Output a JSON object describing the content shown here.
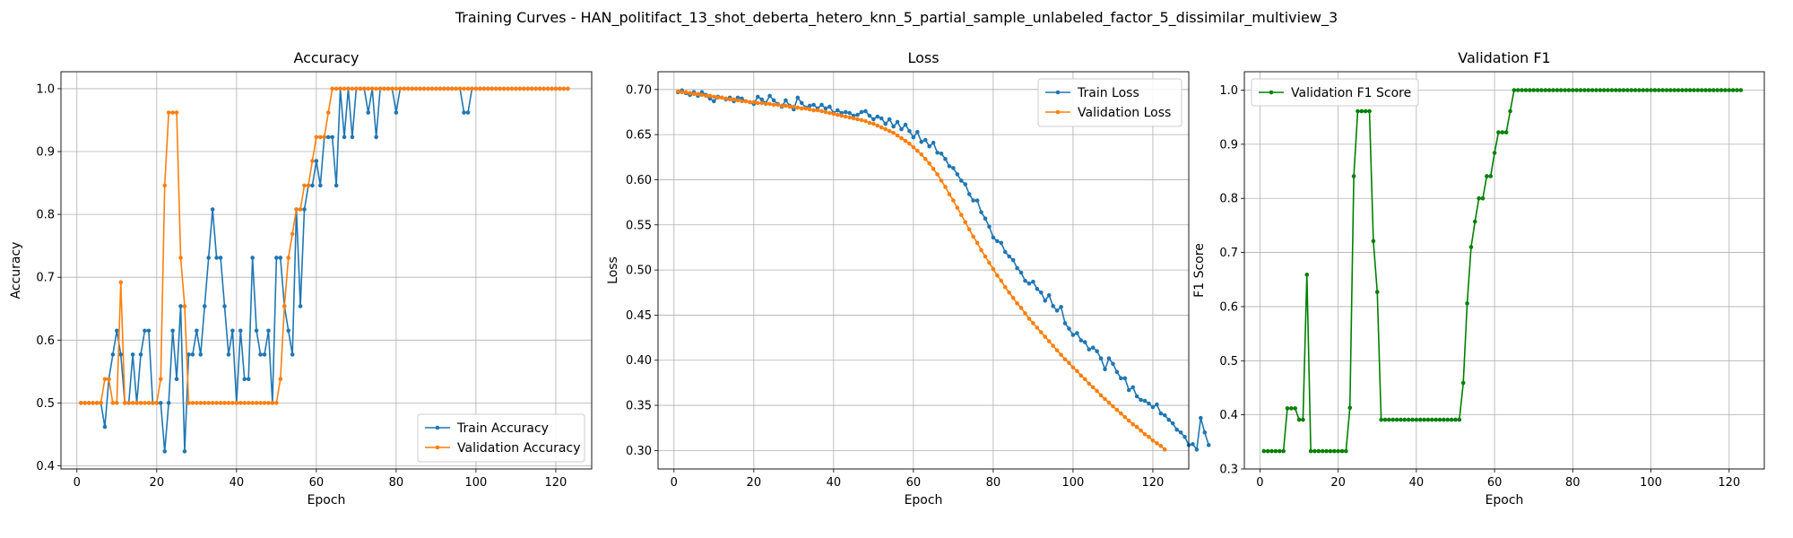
{
  "figure_title": "Training Curves - HAN_politifact_13_shot_deberta_hetero_knn_5_partial_sample_unlabeled_factor_5_dissimilar_multiview_3",
  "colors": {
    "train": "#1f77b4",
    "validation": "#ff7f0e",
    "f1": "#008000",
    "grid": "#b0b0b0"
  },
  "chart_data": [
    {
      "type": "line",
      "title": "Accuracy",
      "xlabel": "Epoch",
      "ylabel": "Accuracy",
      "xlim": [
        -4,
        129
      ],
      "ylim": [
        0.395,
        1.027
      ],
      "xticks": [
        0,
        20,
        40,
        60,
        80,
        100,
        120
      ],
      "yticks": [
        0.4,
        0.5,
        0.6,
        0.7,
        0.8,
        0.9,
        1.0
      ],
      "legend": "bottom-right",
      "grid": true,
      "series": [
        {
          "name": "Train Accuracy",
          "color_key": "train",
          "x_start": 1,
          "values": [
            0.5,
            0.5,
            0.5,
            0.5,
            0.5,
            0.5,
            0.462,
            0.538,
            0.577,
            0.615,
            0.577,
            0.5,
            0.5,
            0.577,
            0.5,
            0.577,
            0.615,
            0.615,
            0.5,
            0.5,
            0.5,
            0.423,
            0.5,
            0.615,
            0.538,
            0.654,
            0.423,
            0.577,
            0.577,
            0.615,
            0.577,
            0.654,
            0.731,
            0.808,
            0.731,
            0.731,
            0.654,
            0.577,
            0.615,
            0.5,
            0.615,
            0.538,
            0.538,
            0.731,
            0.615,
            0.577,
            0.577,
            0.615,
            0.5,
            0.731,
            0.731,
            0.654,
            0.615,
            0.577,
            0.808,
            0.654,
            0.808,
            0.846,
            0.846,
            0.885,
            0.846,
            0.923,
            0.923,
            0.923,
            0.846,
            1.0,
            0.923,
            1.0,
            0.923,
            1.0,
            1.0,
            1.0,
            0.962,
            1.0,
            0.923,
            1.0,
            1.0,
            1.0,
            1.0,
            0.962,
            1.0,
            1.0,
            1.0,
            1.0,
            1.0,
            1.0,
            1.0,
            1.0,
            1.0,
            1.0,
            1.0,
            1.0,
            1.0,
            1.0,
            1.0,
            1.0,
            0.962,
            0.962,
            1.0,
            1.0,
            1.0,
            1.0,
            1.0,
            1.0,
            1.0,
            1.0,
            1.0,
            1.0,
            1.0,
            1.0,
            1.0,
            1.0,
            1.0,
            1.0,
            1.0,
            1.0,
            1.0,
            1.0,
            1.0,
            1.0,
            1.0,
            1.0,
            1.0
          ]
        },
        {
          "name": "Validation Accuracy",
          "color_key": "validation",
          "x_start": 1,
          "values": [
            0.5,
            0.5,
            0.5,
            0.5,
            0.5,
            0.5,
            0.538,
            0.538,
            0.5,
            0.5,
            0.692,
            0.5,
            0.5,
            0.5,
            0.5,
            0.5,
            0.5,
            0.5,
            0.5,
            0.5,
            0.538,
            0.846,
            0.962,
            0.962,
            0.962,
            0.731,
            0.654,
            0.5,
            0.5,
            0.5,
            0.5,
            0.5,
            0.5,
            0.5,
            0.5,
            0.5,
            0.5,
            0.5,
            0.5,
            0.5,
            0.5,
            0.5,
            0.5,
            0.5,
            0.5,
            0.5,
            0.5,
            0.5,
            0.5,
            0.5,
            0.538,
            0.654,
            0.731,
            0.769,
            0.808,
            0.808,
            0.846,
            0.846,
            0.885,
            0.923,
            0.923,
            0.923,
            0.962,
            1.0,
            1.0,
            1.0,
            1.0,
            1.0,
            1.0,
            1.0,
            1.0,
            1.0,
            1.0,
            1.0,
            1.0,
            1.0,
            1.0,
            1.0,
            1.0,
            1.0,
            1.0,
            1.0,
            1.0,
            1.0,
            1.0,
            1.0,
            1.0,
            1.0,
            1.0,
            1.0,
            1.0,
            1.0,
            1.0,
            1.0,
            1.0,
            1.0,
            1.0,
            1.0,
            1.0,
            1.0,
            1.0,
            1.0,
            1.0,
            1.0,
            1.0,
            1.0,
            1.0,
            1.0,
            1.0,
            1.0,
            1.0,
            1.0,
            1.0,
            1.0,
            1.0,
            1.0,
            1.0,
            1.0,
            1.0,
            1.0,
            1.0,
            1.0,
            1.0
          ]
        }
      ]
    },
    {
      "type": "line",
      "title": "Loss",
      "xlabel": "Epoch",
      "ylabel": "Loss",
      "xlim": [
        -4,
        129
      ],
      "ylim": [
        0.2795,
        0.7197
      ],
      "xticks": [
        0,
        20,
        40,
        60,
        80,
        100,
        120
      ],
      "yticks": [
        0.3,
        0.35,
        0.4,
        0.45,
        0.5,
        0.55,
        0.6,
        0.65,
        0.7
      ],
      "legend": "top-right",
      "grid": true,
      "series": [
        {
          "name": "Train Loss",
          "color_key": "train",
          "x_start": 1,
          "values": [
            0.697,
            0.699,
            0.696,
            0.694,
            0.697,
            0.693,
            0.697,
            0.694,
            0.69,
            0.687,
            0.692,
            0.691,
            0.689,
            0.691,
            0.687,
            0.691,
            0.69,
            0.687,
            0.686,
            0.684,
            0.692,
            0.689,
            0.685,
            0.693,
            0.688,
            0.684,
            0.681,
            0.688,
            0.682,
            0.678,
            0.691,
            0.685,
            0.68,
            0.682,
            0.683,
            0.679,
            0.683,
            0.679,
            0.681,
            0.674,
            0.677,
            0.674,
            0.675,
            0.674,
            0.671,
            0.672,
            0.675,
            0.676,
            0.671,
            0.667,
            0.67,
            0.668,
            0.662,
            0.667,
            0.659,
            0.664,
            0.656,
            0.661,
            0.654,
            0.647,
            0.653,
            0.642,
            0.644,
            0.637,
            0.641,
            0.63,
            0.629,
            0.623,
            0.615,
            0.613,
            0.606,
            0.599,
            0.595,
            0.584,
            0.577,
            0.577,
            0.564,
            0.557,
            0.548,
            0.536,
            0.532,
            0.53,
            0.52,
            0.515,
            0.511,
            0.502,
            0.497,
            0.488,
            0.485,
            0.487,
            0.479,
            0.475,
            0.466,
            0.472,
            0.46,
            0.455,
            0.459,
            0.441,
            0.435,
            0.428,
            0.43,
            0.422,
            0.42,
            0.412,
            0.414,
            0.41,
            0.402,
            0.39,
            0.402,
            0.396,
            0.387,
            0.38,
            0.38,
            0.367,
            0.37,
            0.36,
            0.356,
            0.355,
            0.352,
            0.348,
            0.351,
            0.341,
            0.339,
            0.334,
            0.33,
            0.323,
            0.32,
            0.315,
            0.306,
            0.307,
            0.301,
            0.336,
            0.32,
            0.306
          ]
        },
        {
          "name": "Validation Loss",
          "color_key": "validation",
          "x_start": 1,
          "values": [
            0.698,
            0.697,
            0.697,
            0.696,
            0.695,
            0.695,
            0.694,
            0.693,
            0.693,
            0.692,
            0.691,
            0.691,
            0.69,
            0.689,
            0.689,
            0.688,
            0.687,
            0.687,
            0.686,
            0.686,
            0.685,
            0.685,
            0.684,
            0.684,
            0.683,
            0.683,
            0.682,
            0.682,
            0.681,
            0.681,
            0.68,
            0.679,
            0.679,
            0.678,
            0.677,
            0.677,
            0.676,
            0.675,
            0.674,
            0.673,
            0.672,
            0.671,
            0.67,
            0.669,
            0.668,
            0.667,
            0.666,
            0.665,
            0.663,
            0.662,
            0.66,
            0.658,
            0.656,
            0.654,
            0.652,
            0.649,
            0.646,
            0.643,
            0.64,
            0.636,
            0.632,
            0.628,
            0.623,
            0.618,
            0.612,
            0.606,
            0.599,
            0.592,
            0.584,
            0.577,
            0.569,
            0.561,
            0.553,
            0.545,
            0.537,
            0.53,
            0.522,
            0.515,
            0.508,
            0.501,
            0.494,
            0.488,
            0.481,
            0.475,
            0.469,
            0.463,
            0.458,
            0.452,
            0.446,
            0.441,
            0.436,
            0.431,
            0.426,
            0.421,
            0.416,
            0.411,
            0.406,
            0.401,
            0.397,
            0.392,
            0.388,
            0.383,
            0.379,
            0.374,
            0.37,
            0.366,
            0.361,
            0.357,
            0.353,
            0.349,
            0.345,
            0.341,
            0.337,
            0.333,
            0.329,
            0.326,
            0.322,
            0.318,
            0.315,
            0.311,
            0.308,
            0.305,
            0.301
          ]
        }
      ]
    },
    {
      "type": "line",
      "title": "Validation F1",
      "xlabel": "Epoch",
      "ylabel": "F1 Score",
      "xlim": [
        -4,
        129
      ],
      "ylim": [
        0.3,
        1.034
      ],
      "xticks": [
        0,
        20,
        40,
        60,
        80,
        100,
        120
      ],
      "yticks": [
        0.3,
        0.4,
        0.5,
        0.6,
        0.7,
        0.8,
        0.9,
        1.0
      ],
      "legend": "top-left",
      "grid": true,
      "series": [
        {
          "name": "Validation F1 Score",
          "color_key": "f1",
          "x_start": 1,
          "values": [
            0.333,
            0.333,
            0.333,
            0.333,
            0.333,
            0.333,
            0.412,
            0.412,
            0.412,
            0.391,
            0.391,
            0.659,
            0.333,
            0.333,
            0.333,
            0.333,
            0.333,
            0.333,
            0.333,
            0.333,
            0.333,
            0.333,
            0.413,
            0.841,
            0.961,
            0.961,
            0.961,
            0.961,
            0.721,
            0.627,
            0.391,
            0.391,
            0.391,
            0.391,
            0.391,
            0.391,
            0.391,
            0.391,
            0.391,
            0.391,
            0.391,
            0.391,
            0.391,
            0.391,
            0.391,
            0.391,
            0.391,
            0.391,
            0.391,
            0.391,
            0.391,
            0.459,
            0.606,
            0.71,
            0.757,
            0.8,
            0.8,
            0.841,
            0.841,
            0.884,
            0.922,
            0.922,
            0.922,
            0.961,
            1.0,
            1.0,
            1.0,
            1.0,
            1.0,
            1.0,
            1.0,
            1.0,
            1.0,
            1.0,
            1.0,
            1.0,
            1.0,
            1.0,
            1.0,
            1.0,
            1.0,
            1.0,
            1.0,
            1.0,
            1.0,
            1.0,
            1.0,
            1.0,
            1.0,
            1.0,
            1.0,
            1.0,
            1.0,
            1.0,
            1.0,
            1.0,
            1.0,
            1.0,
            1.0,
            1.0,
            1.0,
            1.0,
            1.0,
            1.0,
            1.0,
            1.0,
            1.0,
            1.0,
            1.0,
            1.0,
            1.0,
            1.0,
            1.0,
            1.0,
            1.0,
            1.0,
            1.0,
            1.0,
            1.0,
            1.0,
            1.0,
            1.0,
            1.0
          ]
        }
      ]
    }
  ]
}
